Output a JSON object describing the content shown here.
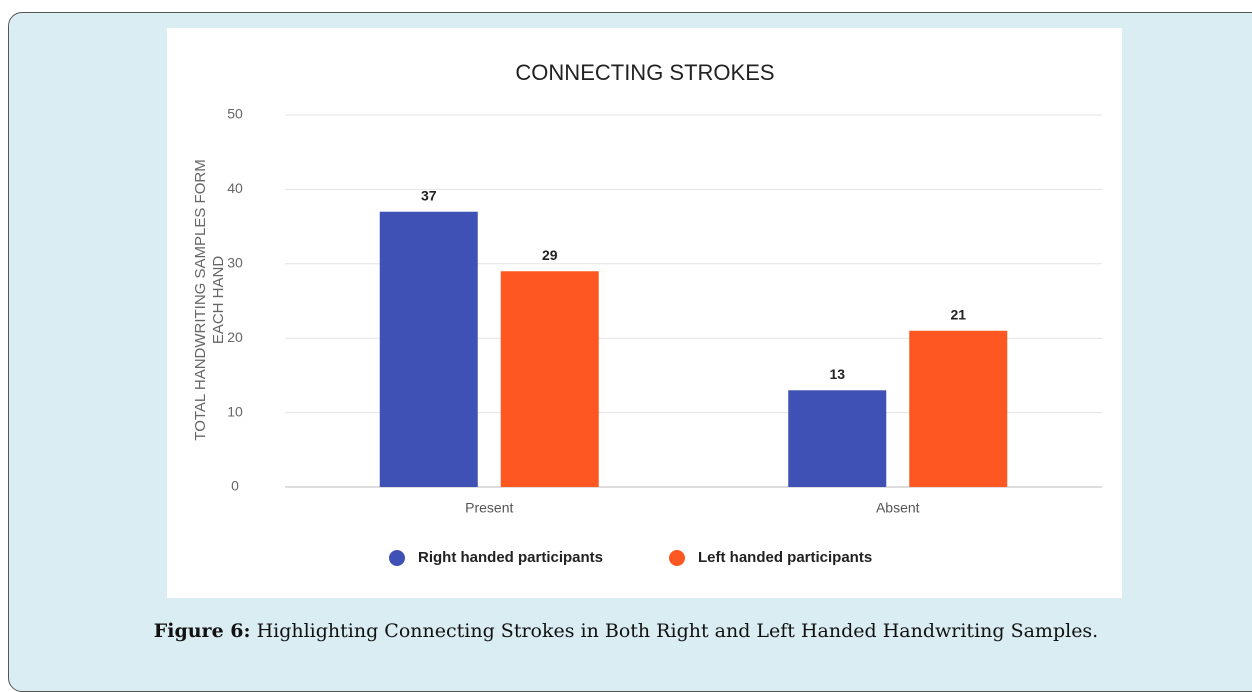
{
  "chart_data": {
    "type": "bar",
    "title": "CONNECTING STROKES",
    "y_label": [
      "TOTAL HANDWRITING SAMPLES FORM",
      "EACH HAND"
    ],
    "categories": [
      "Present",
      "Absent"
    ],
    "series": [
      {
        "name": "Right handed participants",
        "color": "#3f51b5",
        "values": [
          37,
          13
        ]
      },
      {
        "name": "Left handed participants",
        "color": "#ff5722",
        "values": [
          29,
          21
        ]
      }
    ],
    "ylim": [
      0,
      50
    ],
    "yticks": [
      0,
      10,
      20,
      30,
      40,
      50
    ],
    "grid": true,
    "legend": "bottom"
  },
  "caption": {
    "label": "Figure 6:",
    "text": "Highlighting Connecting Strokes in Both Right and Left Handed Handwriting Samples."
  }
}
